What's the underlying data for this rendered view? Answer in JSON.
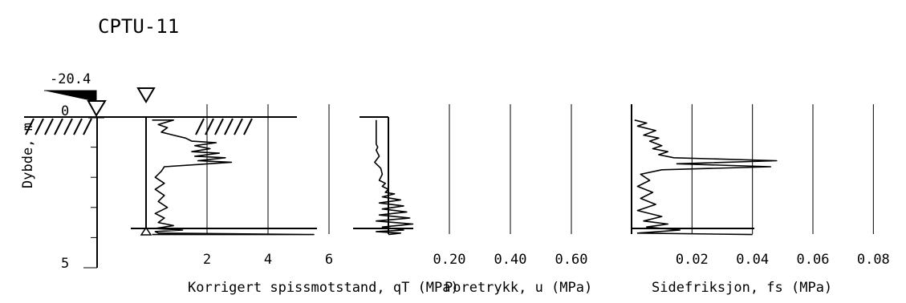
{
  "chart_data": {
    "type": "line",
    "title": "CPTU-11",
    "y_axis": {
      "label": "Dybde, m",
      "ticks": [
        "0",
        "5"
      ],
      "elevation_label": "-20.4",
      "range": [
        0,
        5
      ]
    },
    "panels": [
      {
        "id": "qt",
        "xlabel": "Korrigert spissmotstand, qT (MPa)",
        "tick_labels": [
          "2",
          "4",
          "6"
        ],
        "ticks": [
          2,
          4,
          6
        ],
        "xlim": [
          0,
          8
        ],
        "series": [
          {
            "x": [
              0.2,
              0.9,
              0.4,
              0.7,
              0.5,
              0.9,
              1.3,
              1.5,
              2.3,
              1.6,
              2.1,
              1.5,
              2.4,
              1.6,
              2.6,
              1.7,
              2.8,
              0.6,
              0.5,
              0.3,
              0.6,
              0.3,
              0.6,
              0.4,
              0.7,
              0.3,
              0.6,
              0.4,
              0.9,
              0.3,
              1.2,
              0.3,
              0.4,
              5.5,
              0.2
            ],
            "y": [
              0.1,
              0.1,
              0.25,
              0.35,
              0.5,
              0.6,
              0.7,
              0.8,
              0.85,
              0.95,
              1.05,
              1.15,
              1.2,
              1.3,
              1.35,
              1.45,
              1.5,
              1.65,
              1.8,
              2.0,
              2.2,
              2.4,
              2.6,
              2.8,
              3.0,
              3.2,
              3.35,
              3.5,
              3.6,
              3.7,
              3.75,
              3.8,
              3.85,
              3.9,
              3.9
            ]
          }
        ]
      },
      {
        "id": "u",
        "xlabel": "Poretrykk, u (MPa)",
        "tick_labels": [
          "0.20",
          "0.40",
          "0.60"
        ],
        "ticks": [
          0.2,
          0.4,
          0.6
        ],
        "xlim": [
          -0.1,
          0.7
        ],
        "series": [
          {
            "x": [
              -0.04,
              -0.04,
              -0.04,
              -0.035,
              -0.04,
              -0.03,
              -0.045,
              -0.025,
              -0.02,
              -0.03,
              -0.01,
              -0.02,
              0.0,
              -0.01,
              0.02,
              -0.02,
              0.04,
              -0.03,
              0.05,
              -0.02,
              0.06,
              -0.03,
              0.07,
              -0.04,
              0.08,
              -0.02,
              0.05,
              -0.04,
              0.04,
              0.0
            ],
            "y": [
              0.1,
              0.5,
              0.9,
              1.0,
              1.1,
              1.3,
              1.5,
              1.7,
              1.9,
              2.1,
              2.2,
              2.3,
              2.4,
              2.5,
              2.55,
              2.65,
              2.75,
              2.85,
              2.95,
              3.05,
              3.15,
              3.25,
              3.35,
              3.45,
              3.55,
              3.65,
              3.75,
              3.8,
              3.85,
              3.9
            ]
          }
        ]
      },
      {
        "id": "fs",
        "xlabel": "Sidefriksjon, fs (MPa)",
        "tick_labels": [
          "0.02",
          "0.04",
          "0.06",
          "0.08"
        ],
        "ticks": [
          0.02,
          0.04,
          0.06,
          0.08
        ],
        "xlim": [
          0,
          0.09
        ],
        "series": [
          {
            "x": [
              0.001,
              0.005,
              0.002,
              0.008,
              0.004,
              0.009,
              0.006,
              0.01,
              0.007,
              0.012,
              0.009,
              0.014,
              0.048,
              0.015,
              0.046,
              0.01,
              0.003,
              0.006,
              0.002,
              0.007,
              0.003,
              0.008,
              0.002,
              0.01,
              0.004,
              0.012,
              0.005,
              0.016,
              0.002,
              0.04
            ],
            "y": [
              0.1,
              0.2,
              0.3,
              0.45,
              0.6,
              0.7,
              0.8,
              0.95,
              1.05,
              1.15,
              1.25,
              1.35,
              1.45,
              1.55,
              1.65,
              1.75,
              1.9,
              2.1,
              2.3,
              2.5,
              2.7,
              2.9,
              3.1,
              3.3,
              3.45,
              3.55,
              3.65,
              3.75,
              3.85,
              3.9
            ]
          }
        ]
      }
    ],
    "grid": true
  }
}
